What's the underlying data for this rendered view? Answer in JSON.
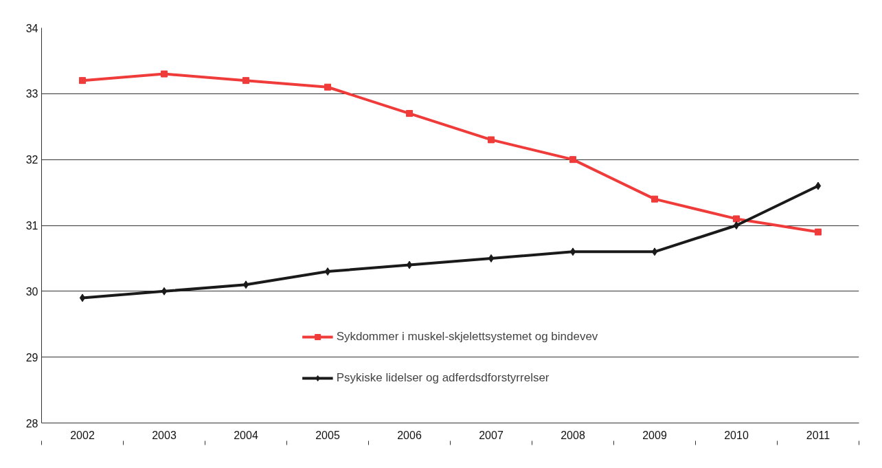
{
  "chart_data": {
    "type": "line",
    "categories": [
      "2002",
      "2003",
      "2004",
      "2005",
      "2006",
      "2007",
      "2008",
      "2009",
      "2010",
      "2011"
    ],
    "ylim": [
      28,
      34
    ],
    "yticks": [
      28,
      29,
      30,
      31,
      32,
      33,
      34
    ],
    "grid": "y",
    "legend": "bottom",
    "series": [
      {
        "name": "Sykdommer i muskel-skjelettsystemet og bindevev",
        "color": "#ef3b39",
        "marker": "square",
        "values": [
          33.2,
          33.3,
          33.2,
          33.1,
          32.7,
          32.3,
          32.0,
          31.4,
          31.1,
          30.9
        ]
      },
      {
        "name": "Psykiske lidelser og adferdsdforstyrrelser",
        "color": "#1a1a1a",
        "marker": "diamond",
        "values": [
          29.9,
          30.0,
          30.1,
          30.3,
          30.4,
          30.5,
          30.6,
          30.6,
          31.0,
          31.6
        ]
      }
    ]
  }
}
